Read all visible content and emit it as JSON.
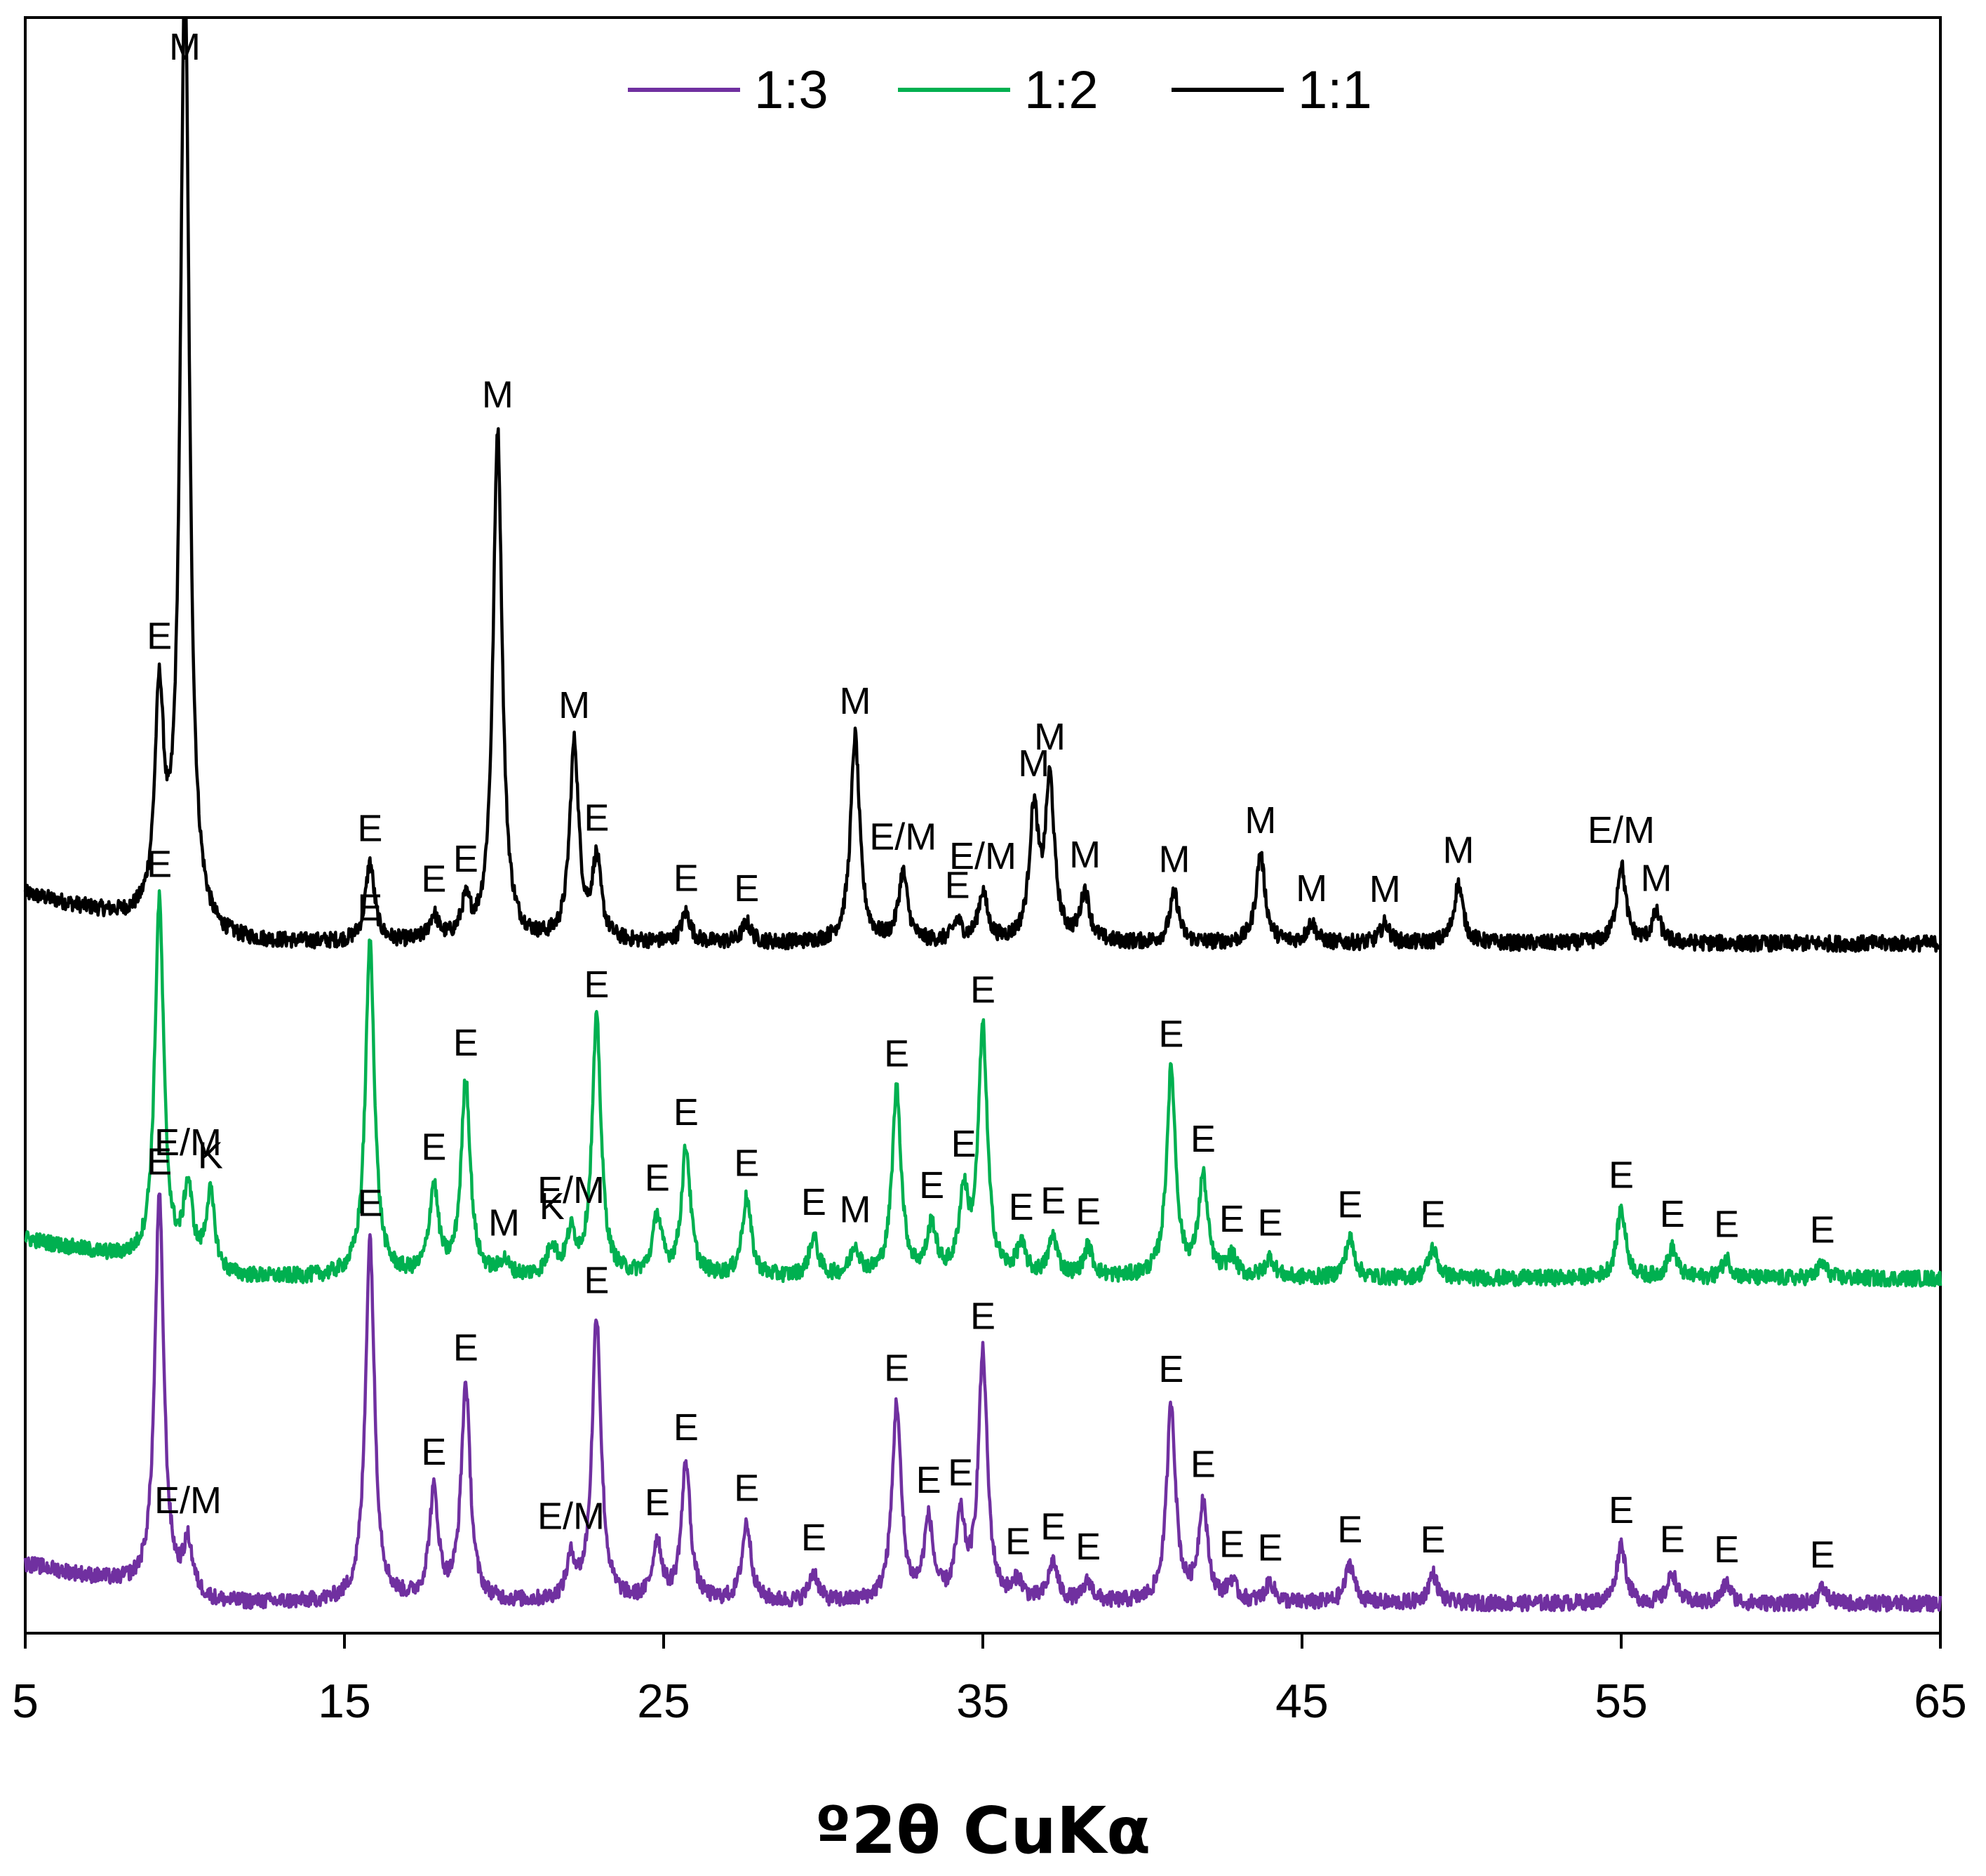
{
  "chart_data": {
    "type": "line",
    "title": "",
    "xlabel": "º2θ CuKα",
    "ylabel": "",
    "xlim": [
      5,
      65
    ],
    "xticks": [
      "5",
      "15",
      "25",
      "35",
      "45",
      "55",
      "65"
    ],
    "grid": false,
    "legend_position": "top-center",
    "colors": {
      "1:3": "#7030a0",
      "1:2": "#00b050",
      "1:1": "#000000"
    },
    "series": [
      {
        "name": "1:1",
        "offset": 66,
        "baseline": 4,
        "peaks": [
          {
            "x": 9.2,
            "h": 22,
            "label": "E"
          },
          {
            "x": 10.0,
            "h": 98,
            "label": "M"
          },
          {
            "x": 15.8,
            "h": 8,
            "label": "E"
          },
          {
            "x": 17.8,
            "h": 2.5,
            "label": "E"
          },
          {
            "x": 18.8,
            "h": 3.5,
            "label": "E"
          },
          {
            "x": 19.8,
            "h": 52,
            "label": "M"
          },
          {
            "x": 22.2,
            "h": 20,
            "label": "M"
          },
          {
            "x": 22.9,
            "h": 8,
            "label": "E"
          },
          {
            "x": 25.7,
            "h": 3,
            "label": "E"
          },
          {
            "x": 27.6,
            "h": 2,
            "label": "E"
          },
          {
            "x": 31.0,
            "h": 21,
            "label": "M"
          },
          {
            "x": 32.5,
            "h": 7,
            "label": "E/M"
          },
          {
            "x": 34.2,
            "h": 2,
            "label": "E"
          },
          {
            "x": 35.0,
            "h": 5,
            "label": "E/M"
          },
          {
            "x": 36.6,
            "h": 13,
            "label": "M"
          },
          {
            "x": 37.1,
            "h": 16,
            "label": "M"
          },
          {
            "x": 38.2,
            "h": 5,
            "label": "M"
          },
          {
            "x": 41.0,
            "h": 5,
            "label": "M"
          },
          {
            "x": 43.7,
            "h": 9,
            "label": "M"
          },
          {
            "x": 45.3,
            "h": 2,
            "label": "M"
          },
          {
            "x": 47.6,
            "h": 2,
            "label": "M"
          },
          {
            "x": 49.9,
            "h": 6,
            "label": "M"
          },
          {
            "x": 55.0,
            "h": 8,
            "label": "E/M"
          },
          {
            "x": 56.1,
            "h": 3,
            "label": "M"
          }
        ]
      },
      {
        "name": "1:2",
        "offset": 33,
        "baseline": 3,
        "peaks": [
          {
            "x": 9.2,
            "h": 37,
            "label": "E"
          },
          {
            "x": 10.1,
            "h": 8,
            "label": "E/M"
          },
          {
            "x": 10.8,
            "h": 8,
            "label": "K"
          },
          {
            "x": 15.8,
            "h": 34,
            "label": "E"
          },
          {
            "x": 17.8,
            "h": 9,
            "label": "E"
          },
          {
            "x": 18.8,
            "h": 20,
            "label": "E"
          },
          {
            "x": 20.0,
            "h": 1.5,
            "label": "M"
          },
          {
            "x": 21.5,
            "h": 3,
            "label": "K"
          },
          {
            "x": 22.1,
            "h": 4,
            "label": "E/M"
          },
          {
            "x": 22.9,
            "h": 26,
            "label": "E"
          },
          {
            "x": 24.8,
            "h": 6,
            "label": "E"
          },
          {
            "x": 25.7,
            "h": 13,
            "label": "E"
          },
          {
            "x": 27.6,
            "h": 8,
            "label": "E"
          },
          {
            "x": 29.7,
            "h": 4,
            "label": "E"
          },
          {
            "x": 31.0,
            "h": 3,
            "label": "M"
          },
          {
            "x": 32.3,
            "h": 19,
            "label": "E"
          },
          {
            "x": 33.4,
            "h": 5,
            "label": "E"
          },
          {
            "x": 34.4,
            "h": 8,
            "label": "E"
          },
          {
            "x": 35.0,
            "h": 25,
            "label": "E"
          },
          {
            "x": 36.2,
            "h": 3,
            "label": "E"
          },
          {
            "x": 37.2,
            "h": 4,
            "label": "E"
          },
          {
            "x": 38.3,
            "h": 3,
            "label": "E"
          },
          {
            "x": 40.9,
            "h": 21,
            "label": "E"
          },
          {
            "x": 41.9,
            "h": 10,
            "label": "E"
          },
          {
            "x": 42.8,
            "h": 2,
            "label": "E"
          },
          {
            "x": 44.0,
            "h": 2,
            "label": "E"
          },
          {
            "x": 46.5,
            "h": 4,
            "label": "E"
          },
          {
            "x": 49.1,
            "h": 3,
            "label": "E"
          },
          {
            "x": 55.0,
            "h": 7,
            "label": "E"
          },
          {
            "x": 56.6,
            "h": 3,
            "label": "E"
          },
          {
            "x": 58.3,
            "h": 2,
            "label": "E"
          },
          {
            "x": 61.3,
            "h": 1.5,
            "label": "E"
          }
        ]
      },
      {
        "name": "1:3",
        "offset": 0,
        "baseline": 3,
        "peaks": [
          {
            "x": 9.2,
            "h": 40,
            "label": "E"
          },
          {
            "x": 10.1,
            "h": 5,
            "label": "E/M"
          },
          {
            "x": 15.8,
            "h": 37,
            "label": "E"
          },
          {
            "x": 17.8,
            "h": 11,
            "label": "E"
          },
          {
            "x": 18.8,
            "h": 22,
            "label": "E"
          },
          {
            "x": 22.1,
            "h": 4,
            "label": "E/M"
          },
          {
            "x": 22.9,
            "h": 29,
            "label": "E"
          },
          {
            "x": 24.8,
            "h": 6,
            "label": "E"
          },
          {
            "x": 25.7,
            "h": 14,
            "label": "E"
          },
          {
            "x": 27.6,
            "h": 8,
            "label": "E"
          },
          {
            "x": 29.7,
            "h": 3,
            "label": "E"
          },
          {
            "x": 32.3,
            "h": 20,
            "label": "E"
          },
          {
            "x": 33.3,
            "h": 8,
            "label": "E"
          },
          {
            "x": 34.3,
            "h": 8,
            "label": "E"
          },
          {
            "x": 35.0,
            "h": 25,
            "label": "E"
          },
          {
            "x": 36.1,
            "h": 2,
            "label": "E"
          },
          {
            "x": 37.2,
            "h": 4,
            "label": "E"
          },
          {
            "x": 38.3,
            "h": 2,
            "label": "E"
          },
          {
            "x": 40.9,
            "h": 20,
            "label": "E"
          },
          {
            "x": 41.9,
            "h": 10,
            "label": "E"
          },
          {
            "x": 42.8,
            "h": 2,
            "label": "E"
          },
          {
            "x": 44.0,
            "h": 2,
            "label": "E"
          },
          {
            "x": 46.5,
            "h": 4,
            "label": "E"
          },
          {
            "x": 49.1,
            "h": 3,
            "label": "E"
          },
          {
            "x": 55.0,
            "h": 6,
            "label": "E"
          },
          {
            "x": 56.6,
            "h": 3,
            "label": "E"
          },
          {
            "x": 58.3,
            "h": 2,
            "label": "E"
          },
          {
            "x": 61.3,
            "h": 1.5,
            "label": "E"
          }
        ]
      }
    ]
  }
}
